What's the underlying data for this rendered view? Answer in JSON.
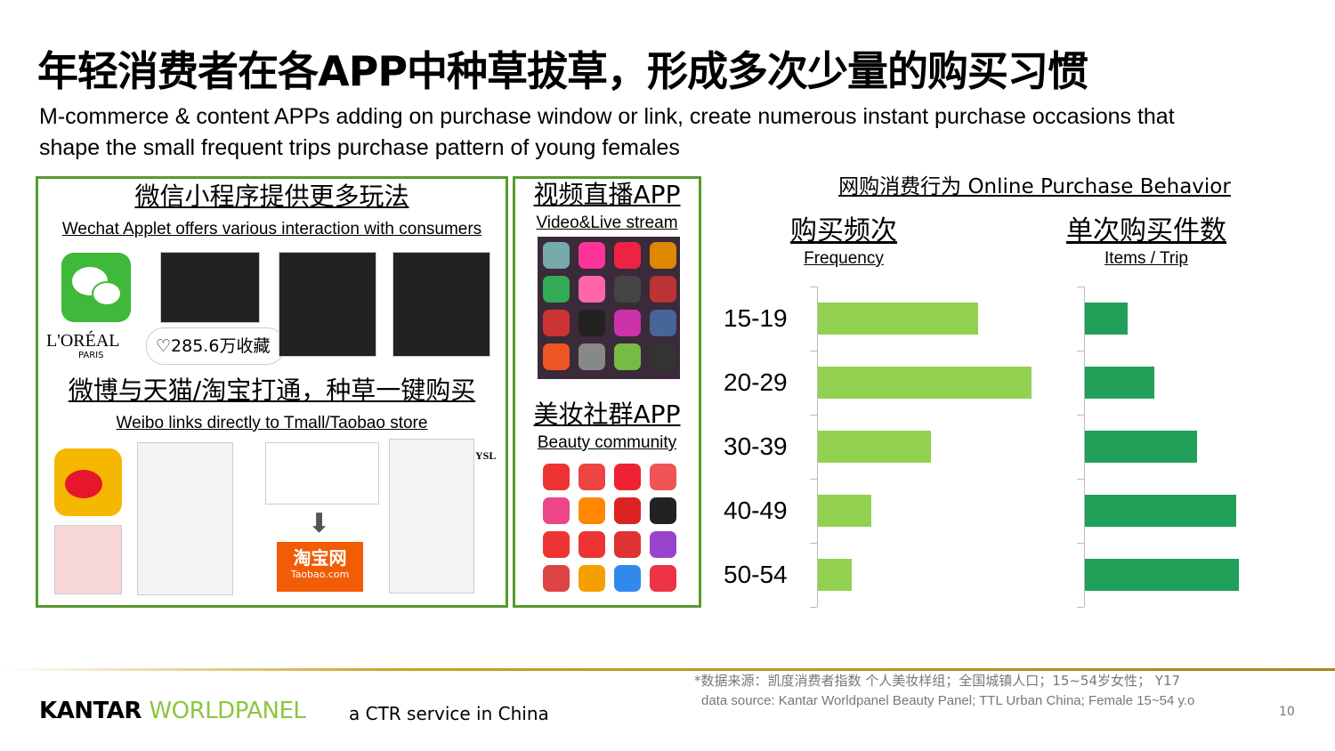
{
  "title": "年轻消费者在各APP中种草拔草，形成多次少量的购买习惯",
  "subtitle": "M-commerce & content APPs adding on purchase window or link, create numerous instant purchase occasions that shape the small frequent trips purchase pattern of young females",
  "wechat": {
    "title_cn": "微信小程序提供更多玩法",
    "title_en": "Wechat Applet offers various interaction with consumers",
    "brand": "L'ORÉAL",
    "brand_sub": "PARIS",
    "favorites": "285.6万收藏"
  },
  "weibo": {
    "title_cn": "微博与天猫/淘宝打通，种草一键购买",
    "title_en": "Weibo links directly to Tmall/Taobao store",
    "taobao_cn": "淘宝网",
    "taobao_en": "Taobao.com",
    "ysl": "YSL"
  },
  "video": {
    "title_cn": "视频直播APP",
    "title_en": "Video&Live stream"
  },
  "beauty": {
    "title_cn": "美妆社群APP",
    "title_en": "Beauty community"
  },
  "chart_data": {
    "title": "网购消费行为 Online Purchase Behavior",
    "type": "bar",
    "orientation": "horizontal",
    "categories": [
      "15-19",
      "20-29",
      "30-39",
      "40-49",
      "50-54"
    ],
    "series": [
      {
        "name": "购买频次",
        "name_en": "Frequency",
        "color": "#92d050",
        "values": [
          75,
          100,
          53,
          25,
          16
        ]
      },
      {
        "name": "单次购买件数",
        "name_en": "Items / Trip",
        "color": "#21a05a",
        "values": [
          28,
          45,
          73,
          98,
          100
        ]
      }
    ],
    "value_axis_labels": false,
    "grid": false
  },
  "footer": {
    "source_cn": "*数据来源：凯度消费者指数 个人美妆样组；全国城镇人口；15~54岁女性； Y17",
    "source_en": "data source: Kantar Worldpanel  Beauty Panel; TTL Urban China; Female 15~54 y.o",
    "page": "10",
    "logo_kantar": "KANTAR",
    "logo_wp": "WORLDPANEL",
    "tagline": "a CTR service in China"
  }
}
